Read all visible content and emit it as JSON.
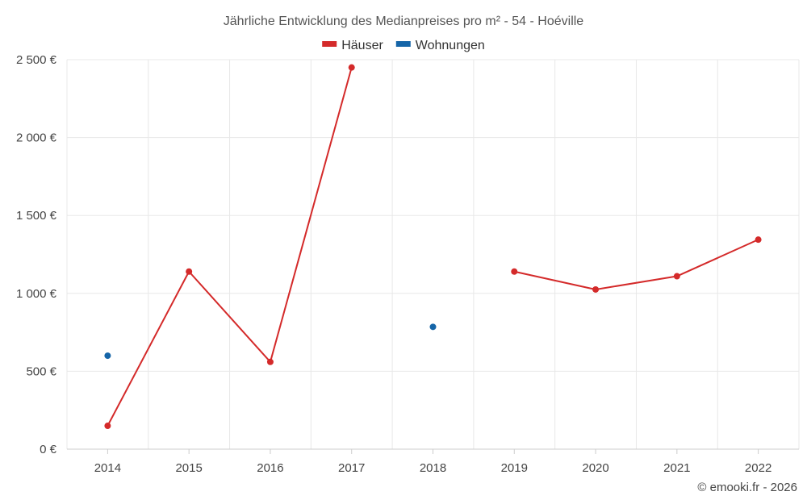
{
  "chart_data": {
    "type": "line",
    "title": "Jährliche Entwicklung des Medianpreises pro m² - 54 - Hoéville",
    "xlabel": "",
    "ylabel": "",
    "categories": [
      "2014",
      "2015",
      "2016",
      "2017",
      "2018",
      "2019",
      "2020",
      "2021",
      "2022"
    ],
    "ylim": [
      0,
      2500
    ],
    "yticks": [
      0,
      500,
      1000,
      1500,
      2000,
      2500
    ],
    "ytick_labels": [
      "0 €",
      "500 €",
      "1 000 €",
      "1 500 €",
      "2 000 €",
      "2 500 €"
    ],
    "grid": true,
    "legend_position": "top-center",
    "series": [
      {
        "name": "Häuser",
        "color": "#d42a2a",
        "values": [
          150,
          1140,
          560,
          2450,
          null,
          1140,
          1025,
          1110,
          1345
        ]
      },
      {
        "name": "Wohnungen",
        "color": "#1565a8",
        "values": [
          600,
          null,
          null,
          null,
          785,
          null,
          null,
          null,
          null
        ]
      }
    ],
    "credit": "© emooki.fr - 2026"
  }
}
